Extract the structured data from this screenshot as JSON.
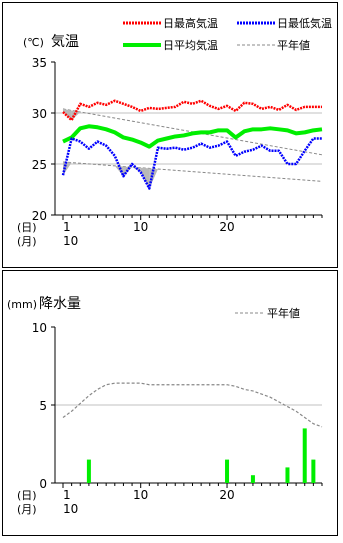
{
  "chart_data": [
    {
      "type": "line",
      "unit_label": "(℃)",
      "title": "気温",
      "x": [
        1,
        2,
        3,
        4,
        5,
        6,
        7,
        8,
        9,
        10,
        11,
        12,
        13,
        14,
        15,
        16,
        17,
        18,
        19,
        20,
        21,
        22,
        23,
        24,
        25,
        26,
        27,
        28,
        29,
        30,
        31
      ],
      "xlim": [
        1,
        31
      ],
      "ylim": [
        20,
        35
      ],
      "yticks": [
        20,
        25,
        30,
        35
      ],
      "xticks": [
        1,
        10,
        20
      ],
      "xtick_labels": [
        "1",
        "10",
        "20"
      ],
      "axis_row_labels": [
        "(日)",
        "(月)"
      ],
      "month_label": "10",
      "grid": "horizontal",
      "legend_position": "top",
      "series": [
        {
          "name": "日最高気温",
          "color": "#ff0000",
          "style": "dotted",
          "values": [
            30.1,
            29.3,
            30.9,
            30.6,
            31.0,
            30.8,
            31.2,
            30.9,
            30.6,
            30.2,
            30.5,
            30.4,
            30.5,
            30.6,
            31.1,
            30.9,
            31.2,
            30.7,
            30.4,
            30.7,
            30.2,
            31.0,
            30.9,
            30.4,
            30.6,
            30.3,
            30.8,
            30.3,
            30.6,
            30.6,
            30.6
          ]
        },
        {
          "name": "日最低気温",
          "color": "#0000ff",
          "style": "dotted",
          "values": [
            23.9,
            27.5,
            27.2,
            26.5,
            27.2,
            26.8,
            25.8,
            23.8,
            25.0,
            24.2,
            22.6,
            26.6,
            26.5,
            26.6,
            26.4,
            26.6,
            27.0,
            26.6,
            26.8,
            27.2,
            25.8,
            26.2,
            26.4,
            26.8,
            26.3,
            26.3,
            25.0,
            25.0,
            26.3,
            27.5,
            27.5
          ]
        },
        {
          "name": "日平均気温",
          "color": "#00ee00",
          "style": "solid",
          "values": [
            27.2,
            27.6,
            28.5,
            28.7,
            28.6,
            28.4,
            28.1,
            27.6,
            27.4,
            27.1,
            26.7,
            27.3,
            27.5,
            27.7,
            27.8,
            28.0,
            28.1,
            28.1,
            28.3,
            28.3,
            27.6,
            28.2,
            28.4,
            28.4,
            28.5,
            28.4,
            28.3,
            28.0,
            28.1,
            28.3,
            28.4
          ]
        },
        {
          "name": "平年値",
          "color": "#888888",
          "style": "dashed",
          "band": [
            [
              30.4,
              25.9
            ],
            [
              25.2,
              23.3
            ]
          ]
        }
      ]
    },
    {
      "type": "bar",
      "unit_label": "(mm)",
      "title": "降水量",
      "x": [
        1,
        2,
        3,
        4,
        5,
        6,
        7,
        8,
        9,
        10,
        11,
        12,
        13,
        14,
        15,
        16,
        17,
        18,
        19,
        20,
        21,
        22,
        23,
        24,
        25,
        26,
        27,
        28,
        29,
        30,
        31
      ],
      "xlim": [
        1,
        31
      ],
      "ylim": [
        0,
        10
      ],
      "yticks": [
        0,
        5,
        10
      ],
      "xticks": [
        1,
        10,
        20
      ],
      "xtick_labels": [
        "1",
        "10",
        "20"
      ],
      "axis_row_labels": [
        "(日)",
        "(月)"
      ],
      "month_label": "10",
      "grid": "horizontal",
      "legend_position": "top-right",
      "series": [
        {
          "name": "降水量",
          "color": "#00ee00",
          "values": [
            0,
            0,
            0,
            1.5,
            0,
            0,
            0,
            0,
            0,
            0,
            0,
            0,
            0,
            0,
            0,
            0,
            0,
            0,
            0,
            1.5,
            0,
            0,
            0.5,
            0,
            0,
            0,
            1.0,
            0,
            3.5,
            1.5,
            0
          ]
        },
        {
          "name": "平年値",
          "color": "#888888",
          "style": "dashed",
          "values": [
            4.2,
            4.6,
            5.1,
            5.6,
            6.0,
            6.3,
            6.4,
            6.4,
            6.4,
            6.4,
            6.3,
            6.3,
            6.3,
            6.3,
            6.3,
            6.3,
            6.3,
            6.3,
            6.3,
            6.3,
            6.2,
            6.0,
            5.9,
            5.7,
            5.5,
            5.2,
            4.9,
            4.6,
            4.2,
            3.8,
            3.6
          ]
        }
      ]
    }
  ]
}
